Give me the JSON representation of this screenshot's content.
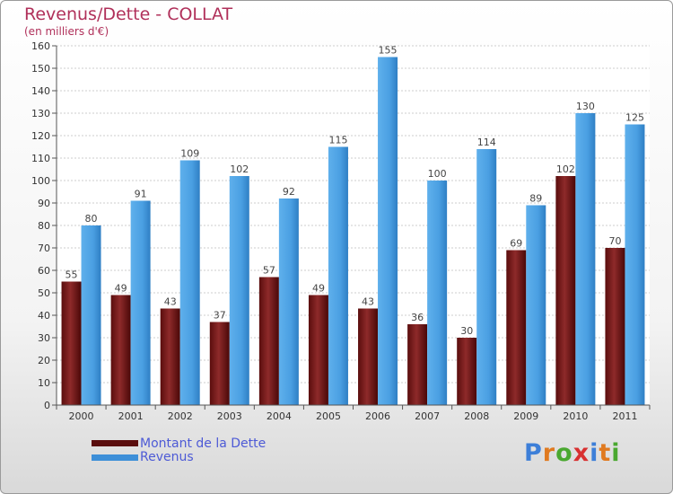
{
  "chart_data": {
    "type": "bar",
    "title": "Revenus/Dette - COLLAT",
    "subtitle": "(en milliers d'€)",
    "categories": [
      "2000",
      "2001",
      "2002",
      "2003",
      "2004",
      "2005",
      "2006",
      "2007",
      "2008",
      "2009",
      "2010",
      "2011"
    ],
    "series": [
      {
        "name": "Montant de la Dette",
        "color": "#7a1a1a",
        "values": [
          55,
          49,
          43,
          37,
          57,
          49,
          43,
          36,
          30,
          69,
          102,
          70
        ]
      },
      {
        "name": "Revenus",
        "color": "#3d8fd8",
        "values": [
          80,
          91,
          109,
          102,
          92,
          115,
          155,
          100,
          114,
          89,
          130,
          125
        ]
      }
    ],
    "ylim": [
      0,
      160
    ],
    "ytick_step": 10,
    "grid": true,
    "legend_position": "bottom-left"
  },
  "logo": {
    "text": "Proxiti"
  }
}
